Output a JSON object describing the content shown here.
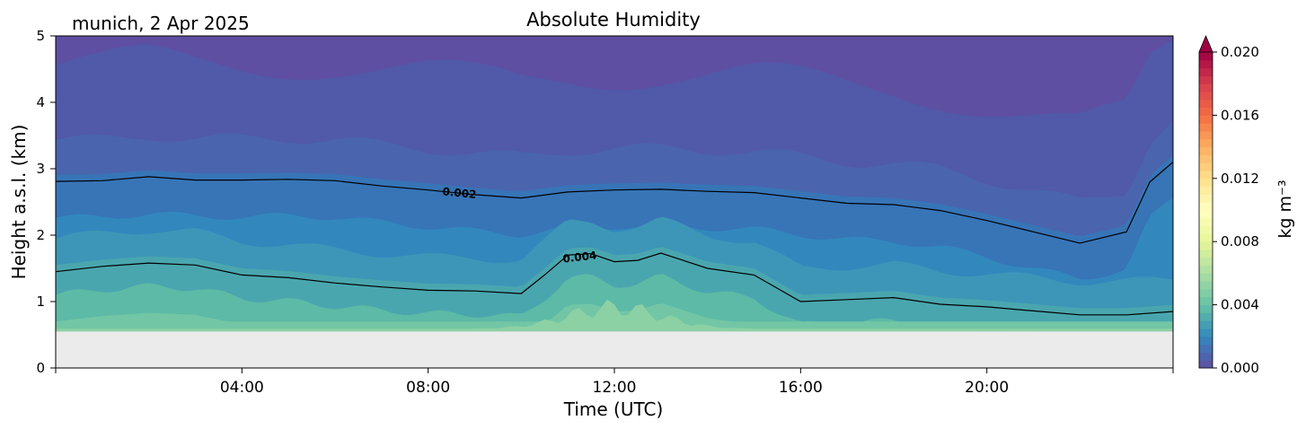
{
  "chart_data": {
    "type": "heatmap",
    "title": "Absolute Humidity",
    "location_label": "munich, 2 Apr 2025",
    "xlabel": "Time (UTC)",
    "ylabel": "Height a.s.l. (km)",
    "xlim_hours": [
      0,
      24
    ],
    "ylim_km": [
      0,
      5
    ],
    "x_ticks": [
      {
        "hour": 4,
        "label": "04:00"
      },
      {
        "hour": 8,
        "label": "08:00"
      },
      {
        "hour": 12,
        "label": "12:00"
      },
      {
        "hour": 16,
        "label": "16:00"
      },
      {
        "hour": 20,
        "label": "20:00"
      }
    ],
    "y_ticks": [
      {
        "value": 0,
        "label": "0"
      },
      {
        "value": 1,
        "label": "1"
      },
      {
        "value": 2,
        "label": "2"
      },
      {
        "value": 3,
        "label": "3"
      },
      {
        "value": 4,
        "label": "4"
      },
      {
        "value": 5,
        "label": "5"
      }
    ],
    "data_floor_km": 0.55,
    "no_data_color": "#ebebeb",
    "colorbar": {
      "label": "kg m⁻³",
      "range": [
        0.0,
        0.02
      ],
      "extend": "max",
      "colormap": "Spectral_r",
      "ticks": [
        {
          "value": 0.0,
          "label": "0.000"
        },
        {
          "value": 0.004,
          "label": "0.004"
        },
        {
          "value": 0.008,
          "label": "0.008"
        },
        {
          "value": 0.012,
          "label": "0.012"
        },
        {
          "value": 0.016,
          "label": "0.016"
        },
        {
          "value": 0.02,
          "label": "0.020"
        }
      ]
    },
    "contours": [
      {
        "level_label": "0.002",
        "label_hour": 8.3,
        "heights_km": [
          [
            0,
            2.81
          ],
          [
            1,
            2.82
          ],
          [
            2,
            2.88
          ],
          [
            3,
            2.83
          ],
          [
            4,
            2.83
          ],
          [
            5,
            2.84
          ],
          [
            6,
            2.82
          ],
          [
            7,
            2.74
          ],
          [
            8,
            2.68
          ],
          [
            9,
            2.61
          ],
          [
            10,
            2.56
          ],
          [
            11,
            2.65
          ],
          [
            12,
            2.68
          ],
          [
            13,
            2.69
          ],
          [
            14,
            2.66
          ],
          [
            15,
            2.64
          ],
          [
            16,
            2.56
          ],
          [
            17,
            2.48
          ],
          [
            18,
            2.46
          ],
          [
            19,
            2.37
          ],
          [
            20,
            2.22
          ],
          [
            21,
            2.05
          ],
          [
            22,
            1.88
          ],
          [
            23,
            2.05
          ],
          [
            23.5,
            2.8
          ],
          [
            24,
            3.1
          ]
        ]
      },
      {
        "level_label": "0.004",
        "label_hour": 10.9,
        "heights_km": [
          [
            0,
            1.45
          ],
          [
            1,
            1.53
          ],
          [
            2,
            1.58
          ],
          [
            3,
            1.55
          ],
          [
            4,
            1.4
          ],
          [
            5,
            1.36
          ],
          [
            6,
            1.28
          ],
          [
            7,
            1.22
          ],
          [
            8,
            1.17
          ],
          [
            9,
            1.16
          ],
          [
            10,
            1.12
          ],
          [
            10.5,
            1.4
          ],
          [
            11,
            1.7
          ],
          [
            11.5,
            1.72
          ],
          [
            12,
            1.6
          ],
          [
            12.5,
            1.62
          ],
          [
            13,
            1.73
          ],
          [
            14,
            1.5
          ],
          [
            15,
            1.4
          ],
          [
            16,
            1.0
          ],
          [
            17,
            1.03
          ],
          [
            18,
            1.06
          ],
          [
            19,
            0.96
          ],
          [
            20,
            0.92
          ],
          [
            21,
            0.86
          ],
          [
            22,
            0.8
          ],
          [
            23,
            0.8
          ],
          [
            24,
            0.85
          ]
        ]
      }
    ]
  }
}
